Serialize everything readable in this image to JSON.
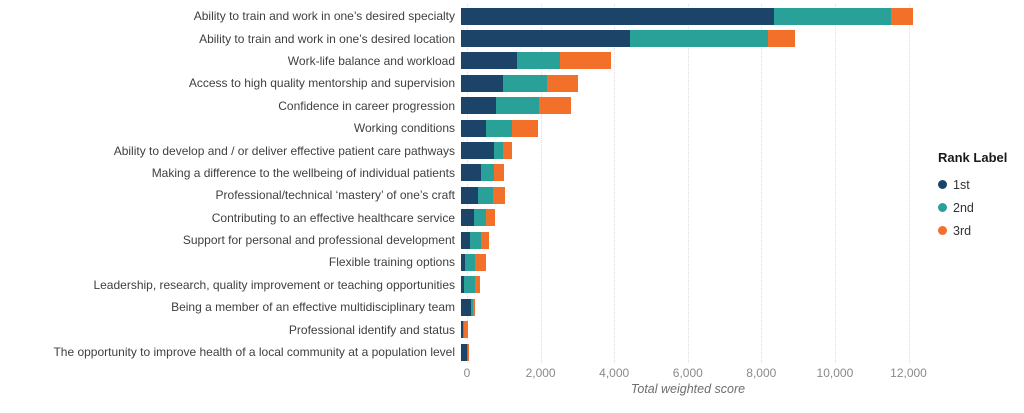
{
  "chart_data": {
    "type": "bar",
    "orientation": "horizontal",
    "stacked": true,
    "title": "",
    "xlabel": "Total weighted score",
    "grid": "dotted-vertical",
    "xlim": [
      0,
      12800
    ],
    "x_ticks": [
      "0",
      "2,000",
      "4,000",
      "6,000",
      "8,000",
      "10,000",
      "12,000"
    ],
    "x_tick_values": [
      0,
      2000,
      4000,
      6000,
      8000,
      10000,
      12000
    ],
    "categories": [
      "Ability to train and work in one’s desired specialty",
      "Ability to train and work in one’s desired location",
      "Work-life balance and workload",
      "Access to high quality mentorship and supervision",
      "Confidence in career progression",
      "Working conditions",
      "Ability to develop and / or deliver effective patient care pathways",
      "Making a difference to the wellbeing of individual patients",
      "Professional/technical ‘mastery’ of one’s craft",
      "Contributing to an effective healthcare service",
      "Support for personal and professional development",
      "Flexible training options",
      "Leadership, research, quality improvement or teaching opportunities",
      "Being a member of an effective multidisciplinary team",
      "Professional identify and status",
      "The opportunity to improve health of a local community at a population level"
    ],
    "series": [
      {
        "name": "1st",
        "color": "#1b4468",
        "values": [
          8510,
          4600,
          1530,
          1140,
          960,
          670,
          890,
          530,
          470,
          350,
          230,
          120,
          80,
          260,
          40,
          150
        ]
      },
      {
        "name": "2nd",
        "color": "#2aa198",
        "values": [
          3170,
          3760,
          1150,
          1210,
          1160,
          710,
          260,
          360,
          410,
          320,
          300,
          250,
          290,
          70,
          40,
          50
        ]
      },
      {
        "name": "3rd",
        "color": "#f3702b",
        "values": [
          620,
          730,
          1410,
          820,
          860,
          710,
          230,
          270,
          330,
          250,
          240,
          320,
          160,
          40,
          110,
          30
        ]
      }
    ],
    "totals": [
      12300,
      9090,
      4090,
      3170,
      2980,
      2090,
      1380,
      1160,
      1210,
      920,
      770,
      690,
      530,
      370,
      190,
      230
    ],
    "legend": {
      "title": "Rank Label",
      "position": "right",
      "entries": [
        {
          "label": "1st",
          "color": "#1b4468"
        },
        {
          "label": "2nd",
          "color": "#2aa198"
        },
        {
          "label": "3rd",
          "color": "#f3702b"
        }
      ]
    },
    "colors": {
      "background": "#ffffff",
      "category_text": "#3f3f3f",
      "tick_text": "#8a8a8a",
      "axis_title_text": "#6e6e6e",
      "gridline": "#dedede"
    }
  }
}
